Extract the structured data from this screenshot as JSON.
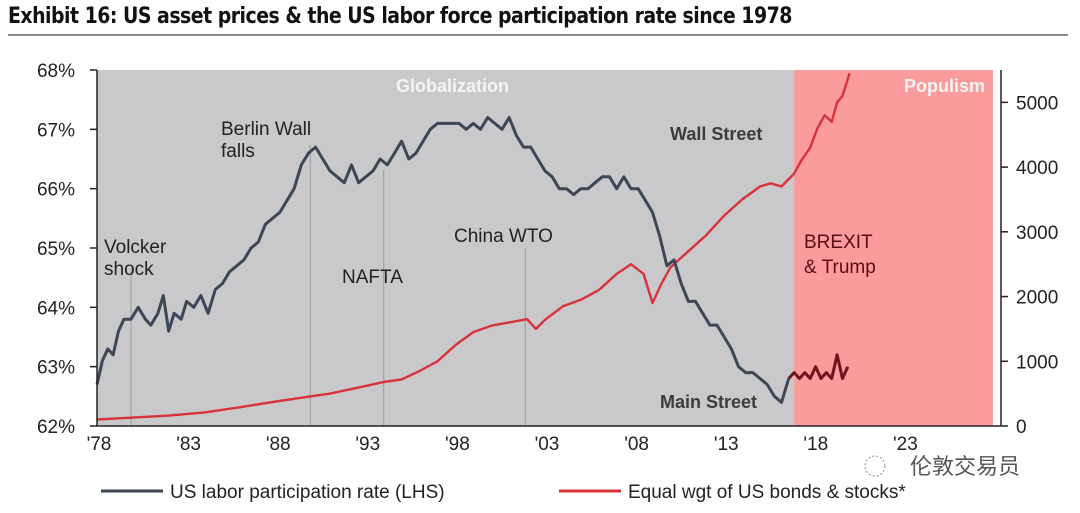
{
  "title": "Exhibit 16: US asset prices & the US labor force participation rate since 1978",
  "watermark": "伦敦交易员",
  "colors": {
    "labor_line": "#3d4655",
    "bonds_stocks_line": "#d8323a",
    "populism_line_labor": "#6e1520",
    "globalization_bg": "#c9c9cb",
    "populism_bg": "#fb9b9c"
  },
  "chart_data": {
    "type": "line",
    "title": "Exhibit 16: US asset prices & the US labor force participation rate since 1978",
    "xlabel": "",
    "ylabel_left": "",
    "ylabel_right": "",
    "xlim": [
      1978,
      2028
    ],
    "ylim_left": [
      62,
      68
    ],
    "ylim_right": [
      0,
      5500
    ],
    "x_ticks": [
      1978,
      1983,
      1988,
      1993,
      1998,
      2003,
      2008,
      2013,
      2018,
      2023
    ],
    "x_tick_labels": [
      "'78",
      "'83",
      "'88",
      "'93",
      "'98",
      "'03",
      "'08",
      "'13",
      "'18",
      "'23"
    ],
    "y_left_ticks": [
      62,
      63,
      64,
      65,
      66,
      67,
      68
    ],
    "y_left_tick_labels": [
      "62%",
      "63%",
      "64%",
      "65%",
      "66%",
      "67%",
      "68%"
    ],
    "y_right_ticks": [
      0,
      1000,
      2000,
      3000,
      4000,
      5000
    ],
    "y_right_tick_labels": [
      "0",
      "1000",
      "2000",
      "3000",
      "4000",
      "5000"
    ],
    "grid": false,
    "legend_position": "bottom",
    "regions": [
      {
        "label": "Globalization",
        "from": 1978,
        "to": 2016.9
      },
      {
        "label": "Populism",
        "from": 2016.9,
        "to": 2028
      }
    ],
    "event_lines": [
      {
        "label": "Volcker shock",
        "x": 1979.9
      },
      {
        "label": "Berlin Wall falls",
        "x": 1989.9
      },
      {
        "label": "NAFTA",
        "x": 1994.0
      },
      {
        "label": "China WTO",
        "x": 2001.9
      }
    ],
    "annotations": [
      {
        "text": "Wall Street",
        "x": 2012.0,
        "y_left": 66.9
      },
      {
        "text": "Main Street",
        "x": 2012.0,
        "y_left": 62.4
      },
      {
        "text": "BREXIT",
        "x": 2017.2,
        "y_left": 64.9
      },
      {
        "text": "& Trump",
        "x": 2017.2,
        "y_left": 64.5
      }
    ],
    "series": [
      {
        "name": "US labor participation rate (LHS)",
        "axis": "left",
        "x": [
          1978.0,
          1978.3,
          1978.6,
          1978.9,
          1979.2,
          1979.5,
          1979.9,
          1980.3,
          1980.7,
          1981.0,
          1981.4,
          1981.7,
          1982.0,
          1982.3,
          1982.7,
          1983.0,
          1983.4,
          1983.8,
          1984.2,
          1984.6,
          1985.0,
          1985.4,
          1985.8,
          1986.2,
          1986.6,
          1987.0,
          1987.4,
          1987.8,
          1988.2,
          1988.6,
          1989.0,
          1989.4,
          1989.8,
          1990.2,
          1990.6,
          1991.0,
          1991.4,
          1991.8,
          1992.2,
          1992.6,
          1993.0,
          1993.4,
          1993.8,
          1994.2,
          1994.6,
          1995.0,
          1995.4,
          1995.8,
          1996.2,
          1996.6,
          1997.0,
          1997.4,
          1997.8,
          1998.2,
          1998.6,
          1999.0,
          1999.4,
          1999.8,
          2000.2,
          2000.6,
          2001.0,
          2001.4,
          2001.8,
          2002.2,
          2002.6,
          2003.0,
          2003.4,
          2003.8,
          2004.2,
          2004.6,
          2005.0,
          2005.4,
          2005.8,
          2006.2,
          2006.6,
          2007.0,
          2007.4,
          2007.8,
          2008.2,
          2008.6,
          2009.0,
          2009.4,
          2009.8,
          2010.2,
          2010.6,
          2011.0,
          2011.4,
          2011.8,
          2012.2,
          2012.6,
          2013.0,
          2013.4,
          2013.8,
          2014.2,
          2014.6,
          2015.0,
          2015.4,
          2015.8,
          2016.2,
          2016.6
        ],
        "y": [
          62.7,
          63.1,
          63.3,
          63.2,
          63.6,
          63.8,
          63.8,
          64.0,
          63.8,
          63.7,
          63.9,
          64.2,
          63.6,
          63.9,
          63.8,
          64.1,
          64.0,
          64.2,
          63.9,
          64.3,
          64.4,
          64.6,
          64.7,
          64.8,
          65.0,
          65.1,
          65.4,
          65.5,
          65.6,
          65.8,
          66.0,
          66.4,
          66.6,
          66.7,
          66.5,
          66.3,
          66.2,
          66.1,
          66.4,
          66.1,
          66.2,
          66.3,
          66.5,
          66.4,
          66.6,
          66.8,
          66.5,
          66.6,
          66.8,
          67.0,
          67.1,
          67.1,
          67.1,
          67.1,
          67.0,
          67.1,
          67.0,
          67.2,
          67.1,
          67.0,
          67.2,
          66.9,
          66.7,
          66.7,
          66.5,
          66.3,
          66.2,
          66.0,
          66.0,
          65.9,
          66.0,
          66.0,
          66.1,
          66.2,
          66.2,
          66.0,
          66.2,
          66.0,
          66.0,
          65.8,
          65.6,
          65.2,
          64.7,
          64.8,
          64.4,
          64.1,
          64.1,
          63.9,
          63.7,
          63.7,
          63.5,
          63.3,
          63.0,
          62.9,
          62.9,
          62.8,
          62.7,
          62.5,
          62.4,
          62.8
        ]
      },
      {
        "name": "US labor participation rate (LHS) - populism period",
        "axis": "left",
        "x": [
          2016.6,
          2016.9,
          2017.2,
          2017.5,
          2017.8,
          2018.1,
          2018.4,
          2018.7,
          2019.0,
          2019.3,
          2019.6,
          2019.9
        ],
        "y": [
          62.8,
          62.9,
          62.8,
          62.9,
          62.8,
          63.0,
          62.8,
          62.9,
          62.8,
          63.2,
          62.8,
          63.0
        ]
      },
      {
        "name": "Equal wgt of US bonds & stocks*",
        "axis": "right",
        "x": [
          1978,
          1980,
          1982,
          1984,
          1986,
          1988,
          1990,
          1991,
          1992,
          1993,
          1994,
          1995,
          1996,
          1997,
          1998,
          1999,
          2000,
          2001,
          2002,
          2002.5,
          2003,
          2004,
          2005,
          2006,
          2007,
          2007.8,
          2008.5,
          2009.0,
          2009.5,
          2010,
          2011,
          2012,
          2013,
          2014,
          2015,
          2015.6,
          2016.2,
          2016.9,
          2017.3,
          2017.8,
          2018.2,
          2018.6,
          2019.0,
          2019.3,
          2019.6,
          2020.0
        ],
        "y": [
          100,
          130,
          160,
          210,
          290,
          380,
          460,
          500,
          560,
          620,
          680,
          720,
          850,
          1000,
          1250,
          1450,
          1550,
          1600,
          1650,
          1500,
          1640,
          1850,
          1950,
          2100,
          2350,
          2500,
          2350,
          1900,
          2200,
          2450,
          2700,
          2950,
          3250,
          3500,
          3700,
          3750,
          3700,
          3900,
          4100,
          4300,
          4600,
          4800,
          4700,
          5000,
          5100,
          5450
        ]
      }
    ],
    "legend": [
      {
        "label": "US labor participation rate (LHS)",
        "color": "#3d4655"
      },
      {
        "label": "Equal wgt of US bonds & stocks*",
        "color": "#d8323a"
      }
    ]
  }
}
